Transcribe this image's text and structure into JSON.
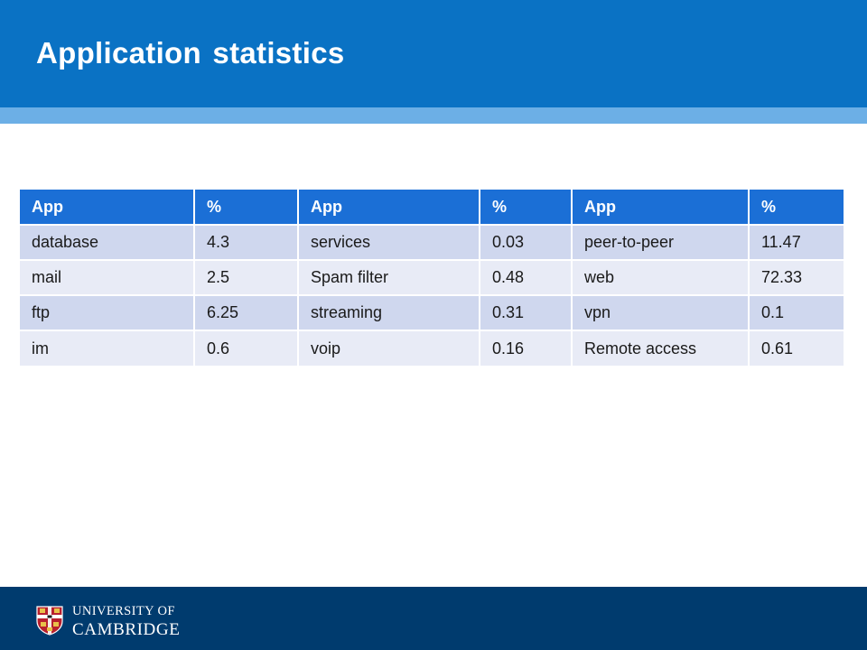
{
  "slide": {
    "title": "Application statistics"
  },
  "table": {
    "headers": [
      "App",
      "%",
      "App",
      "%",
      "App",
      "%"
    ],
    "rows": [
      [
        "database",
        "4.3",
        "services",
        "0.03",
        "peer-to-peer",
        "11.47"
      ],
      [
        "mail",
        "2.5",
        "Spam filter",
        "0.48",
        "web",
        "72.33"
      ],
      [
        "ftp",
        "6.25",
        "streaming",
        "0.31",
        "vpn",
        "0.1"
      ],
      [
        "im",
        "0.6",
        "voip",
        "0.16",
        "Remote access",
        "0.61"
      ]
    ]
  },
  "footer": {
    "logo_line1": "UNIVERSITY OF",
    "logo_line2": "CAMBRIDGE",
    "crest_icon": "university-crest-icon"
  },
  "colors": {
    "header_blue": "#0a72c4",
    "header_stripe": "#6cafe6",
    "table_header": "#1b6fd6",
    "row_dark": "#cfd7ee",
    "row_light": "#e8ebf6",
    "footer_navy": "#003b6e"
  }
}
